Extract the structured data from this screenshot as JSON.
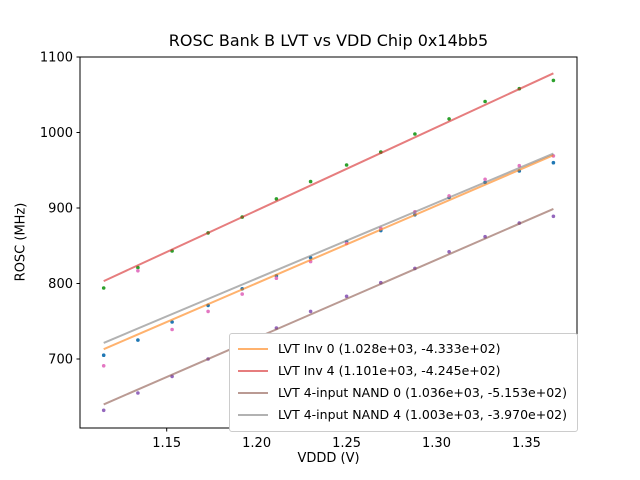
{
  "figure": {
    "title": "ROSC Bank B LVT vs VDD Chip 0x14bb5",
    "xlabel": "VDDD (V)",
    "ylabel": "ROSC (MHz)"
  },
  "legend": {
    "items": [
      {
        "label": "LVT Inv 0 (1.028e+03, -4.333e+02)",
        "color": "rgba(255,127,14,0.6)"
      },
      {
        "label": "LVT Inv 4 (1.101e+03, -4.245e+02)",
        "color": "rgba(214,39,40,0.6)"
      },
      {
        "label": "LVT 4-input NAND 0 (1.036e+03, -5.153e+02)",
        "color": "rgba(140,86,75,0.6)"
      },
      {
        "label": "LVT 4-input NAND 4 (1.003e+03, -3.970e+02)",
        "color": "rgba(127,127,127,0.6)"
      }
    ]
  },
  "chart_data": {
    "type": "scatter",
    "title": "ROSC Bank B LVT vs VDD Chip 0x14bb5",
    "xlabel": "VDDD (V)",
    "ylabel": "ROSC (MHz)",
    "xlim": [
      1.1018,
      1.3781
    ],
    "ylim": [
      608.6,
      1100
    ],
    "xticks": {
      "values": [
        1.15,
        1.2,
        1.25,
        1.3,
        1.35
      ],
      "labels": [
        "1.15",
        "1.20",
        "1.25",
        "1.30",
        "1.35"
      ]
    },
    "yticks": {
      "values": [
        700,
        800,
        900,
        1000,
        1100
      ],
      "labels": [
        "700",
        "800",
        "900",
        "1000",
        "1100"
      ]
    },
    "x": [
      1.115,
      1.134,
      1.153,
      1.173,
      1.192,
      1.211,
      1.23,
      1.25,
      1.269,
      1.288,
      1.307,
      1.327,
      1.346,
      1.365
    ],
    "fit_x_range": [
      1.115,
      1.365
    ],
    "series": [
      {
        "name": "LVT Inv 0",
        "legend_label": "LVT Inv 0 (1.028e+03, -4.333e+02)",
        "marker_color": "#1f77b4",
        "line_color": "#ff7f0e",
        "line_alpha": 0.6,
        "fit": {
          "slope": 1028.0,
          "intercept": -433.3
        },
        "values": [
          705,
          725,
          749,
          771,
          793,
          810,
          834,
          855,
          870,
          891,
          914,
          934,
          949,
          960
        ]
      },
      {
        "name": "LVT Inv 4",
        "legend_label": "LVT Inv 4 (1.101e+03, -4.245e+02)",
        "marker_color": "#2ca02c",
        "line_color": "#d62728",
        "line_alpha": 0.6,
        "fit": {
          "slope": 1101.0,
          "intercept": -424.5
        },
        "values": [
          794,
          821,
          843,
          867,
          888,
          912,
          935,
          957,
          974,
          998,
          1018,
          1041,
          1058,
          1069
        ]
      },
      {
        "name": "LVT 4-input NAND 0",
        "legend_label": "LVT 4-input NAND 0 (1.036e+03, -5.153e+02)",
        "marker_color": "#9467bd",
        "line_color": "#8c564b",
        "line_alpha": 0.6,
        "fit": {
          "slope": 1036.0,
          "intercept": -515.3
        },
        "values": [
          632,
          655,
          677,
          700,
          720,
          741,
          763,
          783,
          801,
          820,
          842,
          862,
          880,
          889
        ]
      },
      {
        "name": "LVT 4-input NAND 4",
        "legend_label": "LVT 4-input NAND 4 (1.003e+03, -3.970e+02)",
        "marker_color": "#e377c2",
        "line_color": "#7f7f7f",
        "line_alpha": 0.6,
        "fit": {
          "slope": 1003.0,
          "intercept": -397.0
        },
        "values": [
          691,
          817,
          739,
          763,
          786,
          807,
          829,
          853,
          873,
          895,
          916,
          938,
          956,
          969
        ]
      }
    ]
  }
}
